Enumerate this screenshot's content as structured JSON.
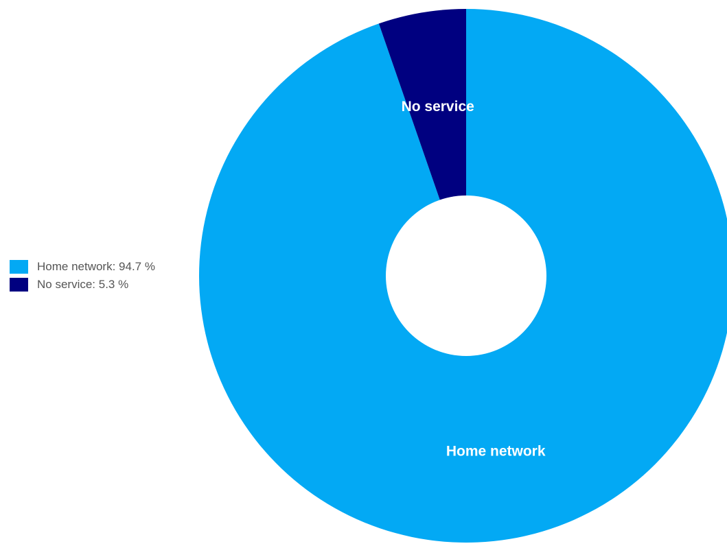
{
  "chart_data": {
    "type": "pie",
    "donut": true,
    "start_angle_deg": 0,
    "direction": "clockwise",
    "slices": [
      {
        "label": "Home network",
        "value": 94.7,
        "legend": "Home network: 94.7 %",
        "color": "#03A9F4"
      },
      {
        "label": "No service",
        "value": 5.3,
        "legend": "No service: 5.3 %",
        "color": "#000080"
      }
    ],
    "legend_position": "left"
  }
}
